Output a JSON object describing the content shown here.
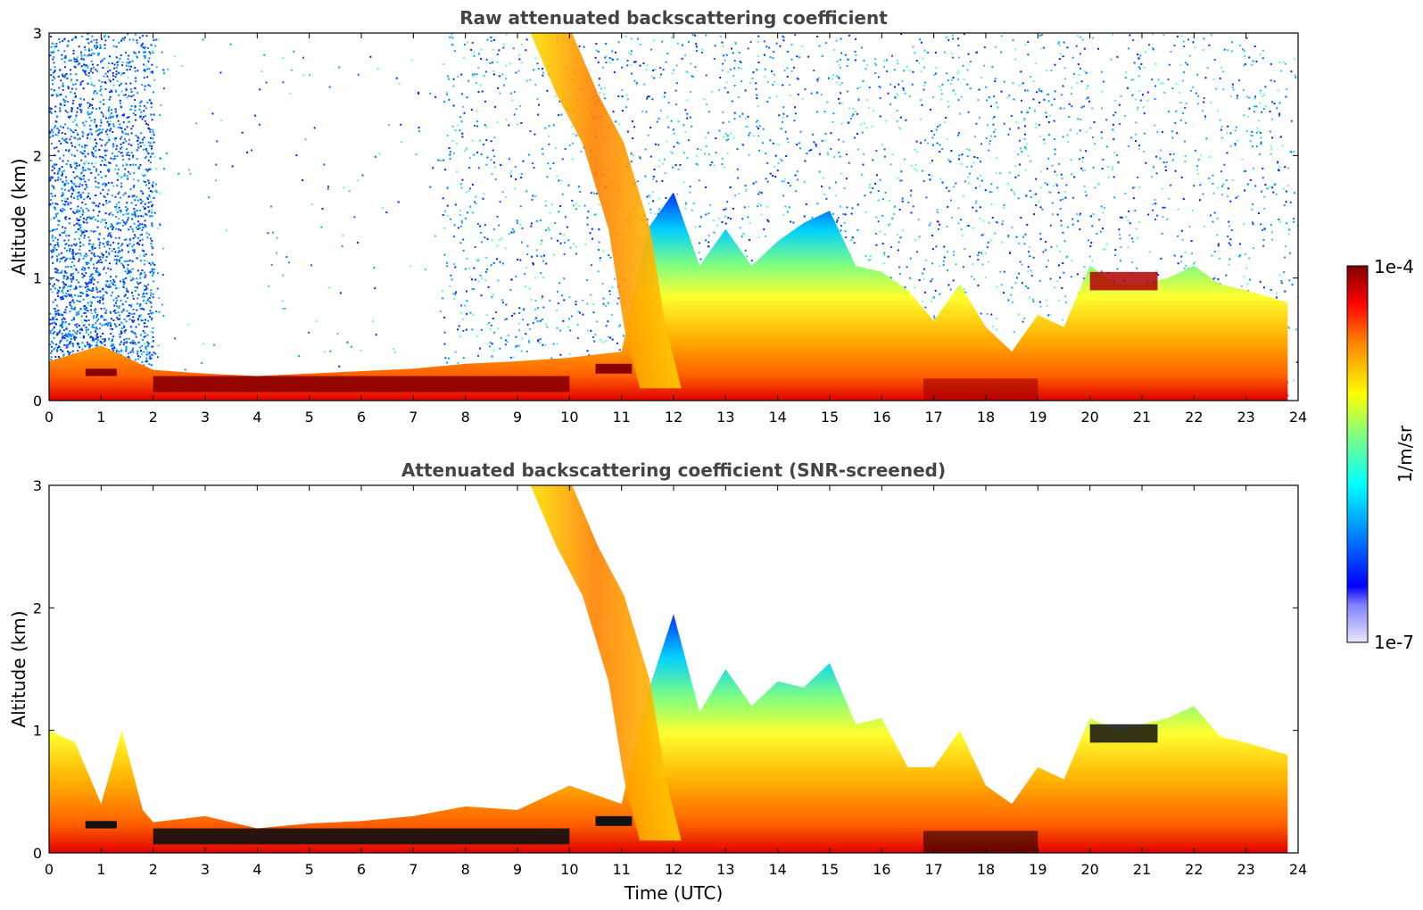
{
  "chart_data": [
    {
      "type": "heatmap",
      "title": "Raw attenuated backscattering coefficient",
      "xlabel": "",
      "ylabel": "Altitude (km)",
      "xlim": [
        0,
        24
      ],
      "ylim": [
        0,
        3
      ],
      "xticks": [
        "0",
        "1",
        "2",
        "3",
        "4",
        "5",
        "6",
        "7",
        "8",
        "9",
        "10",
        "11",
        "12",
        "13",
        "14",
        "15",
        "16",
        "17",
        "18",
        "19",
        "20",
        "21",
        "22",
        "23",
        "24"
      ],
      "yticks": [
        "0",
        "1",
        "2",
        "3"
      ],
      "boundary_layer_top_km": [
        [
          0,
          0.32
        ],
        [
          1,
          0.45
        ],
        [
          2,
          0.25
        ],
        [
          3,
          0.22
        ],
        [
          4,
          0.2
        ],
        [
          5,
          0.22
        ],
        [
          6,
          0.24
        ],
        [
          7,
          0.26
        ],
        [
          8,
          0.3
        ],
        [
          9,
          0.32
        ],
        [
          10,
          0.35
        ],
        [
          11,
          0.4
        ],
        [
          11.5,
          1.4
        ],
        [
          12,
          1.7
        ],
        [
          12.5,
          1.1
        ],
        [
          13,
          1.4
        ],
        [
          13.5,
          1.1
        ],
        [
          14,
          1.3
        ],
        [
          14.5,
          1.45
        ],
        [
          15,
          1.55
        ],
        [
          15.5,
          1.1
        ],
        [
          16,
          1.05
        ],
        [
          16.5,
          0.9
        ],
        [
          17,
          0.65
        ],
        [
          17.5,
          0.95
        ],
        [
          18,
          0.6
        ],
        [
          18.5,
          0.4
        ],
        [
          19,
          0.7
        ],
        [
          19.5,
          0.6
        ],
        [
          20,
          1.1
        ],
        [
          20.5,
          0.95
        ],
        [
          21,
          0.95
        ],
        [
          21.5,
          1.0
        ],
        [
          22,
          1.1
        ],
        [
          22.5,
          0.95
        ],
        [
          23,
          0.9
        ],
        [
          23.8,
          0.8
        ]
      ],
      "aerosol_plume_km": [
        [
          8.5,
          3.0
        ],
        [
          9.5,
          3.0
        ],
        [
          10,
          2.5
        ],
        [
          10.5,
          2.1
        ],
        [
          11,
          1.4
        ],
        [
          11.3,
          0.6
        ],
        [
          11.6,
          0.1
        ]
      ]
    },
    {
      "type": "heatmap",
      "title": "Attenuated backscattering coefficient (SNR-screened)",
      "xlabel": "Time (UTC)",
      "ylabel": "Altitude (km)",
      "xlim": [
        0,
        24
      ],
      "ylim": [
        0,
        3
      ],
      "xticks": [
        "0",
        "1",
        "2",
        "3",
        "4",
        "5",
        "6",
        "7",
        "8",
        "9",
        "10",
        "11",
        "12",
        "13",
        "14",
        "15",
        "16",
        "17",
        "18",
        "19",
        "20",
        "21",
        "22",
        "23",
        "24"
      ],
      "yticks": [
        "0",
        "1",
        "2",
        "3"
      ],
      "boundary_layer_top_km": [
        [
          0,
          1.0
        ],
        [
          0.5,
          0.9
        ],
        [
          1,
          0.4
        ],
        [
          1.4,
          1.0
        ],
        [
          1.8,
          0.35
        ],
        [
          2,
          0.25
        ],
        [
          3,
          0.3
        ],
        [
          4,
          0.2
        ],
        [
          5,
          0.24
        ],
        [
          6,
          0.26
        ],
        [
          7,
          0.3
        ],
        [
          8,
          0.38
        ],
        [
          9,
          0.35
        ],
        [
          10,
          0.55
        ],
        [
          11,
          0.4
        ],
        [
          11.5,
          1.3
        ],
        [
          12,
          1.95
        ],
        [
          12.5,
          1.15
        ],
        [
          13,
          1.5
        ],
        [
          13.5,
          1.2
        ],
        [
          14,
          1.4
        ],
        [
          14.5,
          1.35
        ],
        [
          15,
          1.55
        ],
        [
          15.5,
          1.05
        ],
        [
          16,
          1.1
        ],
        [
          16.5,
          0.7
        ],
        [
          17,
          0.7
        ],
        [
          17.5,
          1.0
        ],
        [
          18,
          0.55
        ],
        [
          18.5,
          0.4
        ],
        [
          19,
          0.7
        ],
        [
          19.5,
          0.6
        ],
        [
          20,
          1.1
        ],
        [
          20.5,
          1.0
        ],
        [
          21,
          1.05
        ],
        [
          21.5,
          1.1
        ],
        [
          22,
          1.2
        ],
        [
          22.5,
          0.95
        ],
        [
          23,
          0.9
        ],
        [
          23.8,
          0.8
        ]
      ],
      "aerosol_plume_km": [
        [
          8.5,
          3.0
        ],
        [
          9.5,
          3.0
        ],
        [
          10,
          2.5
        ],
        [
          10.5,
          2.1
        ],
        [
          11,
          1.4
        ],
        [
          11.3,
          0.6
        ],
        [
          11.6,
          0.1
        ]
      ]
    }
  ],
  "colorbar": {
    "label": "1/m/sr",
    "max_label": "1e-4",
    "min_label": "1e-7",
    "colormap": "jet",
    "colors": [
      "#e8e8ff",
      "#0000ff",
      "#00c0ff",
      "#40ffc0",
      "#ffff00",
      "#ff8000",
      "#ff0000",
      "#800000"
    ]
  }
}
